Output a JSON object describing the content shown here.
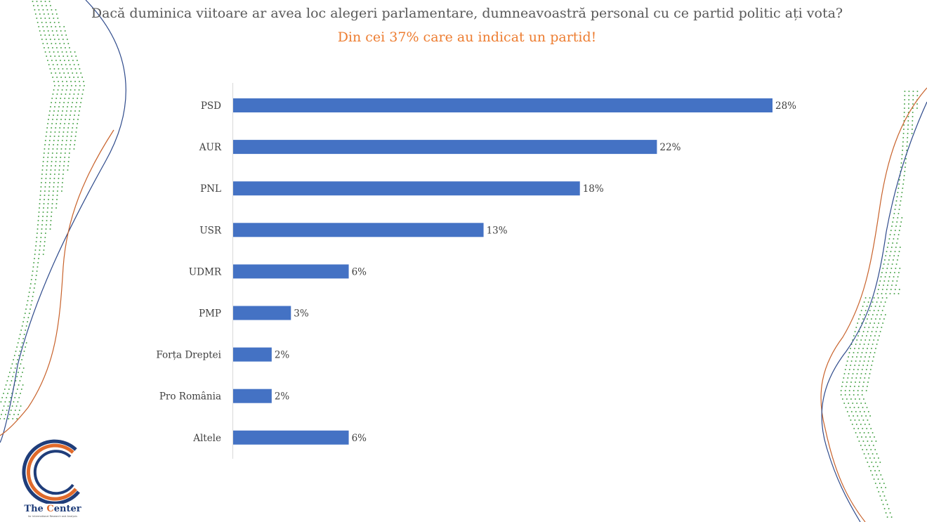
{
  "title": "Dacă duminica viitoare ar avea loc alegeri parlamentare, dumneavoastră personal cu ce partid politic ați vota?",
  "subtitle": "Din cei 37% care au indicat un partid!",
  "colors": {
    "bar": "#4472C4",
    "title": "#595959",
    "subtitle": "#ED7D31",
    "dots": "#4EA64E",
    "curve_blue": "#2E4A8B",
    "curve_orange": "#C8622B",
    "logo_blue": "#1F3D7A",
    "logo_orange": "#E06A2B"
  },
  "chart_data": {
    "type": "bar",
    "orientation": "horizontal",
    "categories": [
      "PSD",
      "AUR",
      "PNL",
      "USR",
      "UDMR",
      "PMP",
      "Forța Dreptei",
      "Pro România",
      "Altele"
    ],
    "values": [
      28,
      22,
      18,
      13,
      6,
      3,
      2,
      2,
      6
    ],
    "value_labels": [
      "28%",
      "22%",
      "18%",
      "13%",
      "6%",
      "3%",
      "2%",
      "2%",
      "6%"
    ],
    "unit": "%",
    "xlim": [
      0,
      30
    ],
    "grid": false,
    "legend": "none"
  },
  "logo": {
    "name_part1": "The ",
    "name_part2": "C",
    "name_part3": "enter",
    "tagline": "for Intermational Research and Analysis"
  }
}
